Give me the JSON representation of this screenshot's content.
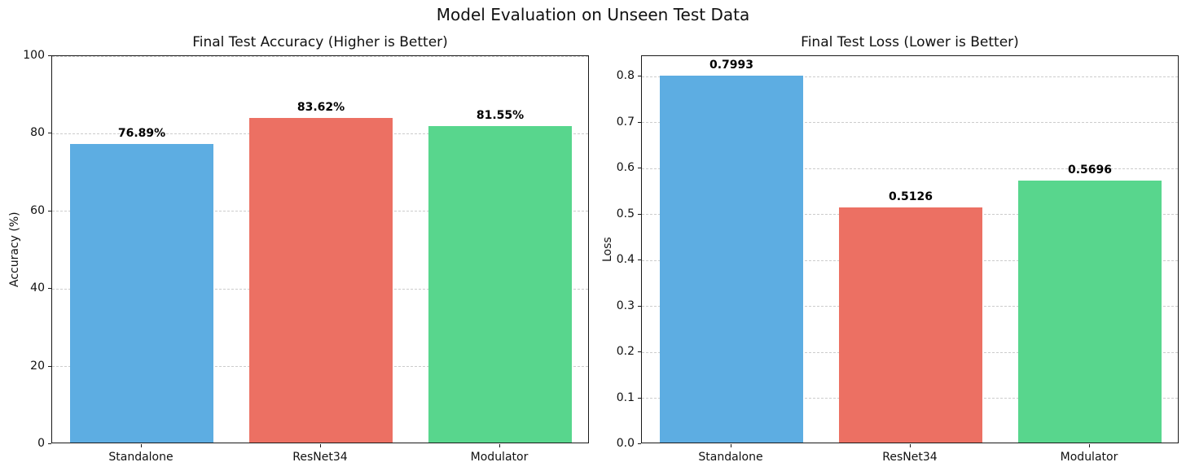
{
  "figure": {
    "title": "Model Evaluation on Unseen Test Data",
    "background": "#ffffff"
  },
  "colors": {
    "bar_blue": "#5DADE2",
    "bar_red": "#EC7063",
    "bar_green": "#58D68D",
    "grid": "#cccccc",
    "spine": "#1a1a1a"
  },
  "chart_data": [
    {
      "type": "bar",
      "title": "Final Test Accuracy (Higher is Better)",
      "categories": [
        "Standalone",
        "ResNet34",
        "Modulator"
      ],
      "values": [
        76.89,
        83.62,
        81.55
      ],
      "value_labels": [
        "76.89%",
        "83.62%",
        "81.55%"
      ],
      "bar_colors": [
        "#5DADE2",
        "#EC7063",
        "#58D68D"
      ],
      "xlabel": "",
      "ylabel": "Accuracy (%)",
      "ylim": [
        0,
        100
      ],
      "yticks": [
        0,
        20,
        40,
        60,
        80,
        100
      ],
      "ytick_labels": [
        "0",
        "20",
        "40",
        "60",
        "80",
        "100"
      ],
      "grid": "dashed-horizontal",
      "legend": "none",
      "bar_rel_width": 0.8
    },
    {
      "type": "bar",
      "title": "Final Test Loss (Lower is Better)",
      "categories": [
        "Standalone",
        "ResNet34",
        "Modulator"
      ],
      "values": [
        0.7993,
        0.5126,
        0.5696
      ],
      "value_labels": [
        "0.7993",
        "0.5126",
        "0.5696"
      ],
      "bar_colors": [
        "#5DADE2",
        "#EC7063",
        "#58D68D"
      ],
      "xlabel": "",
      "ylabel": "Loss",
      "ylim": [
        0,
        0.845
      ],
      "yticks": [
        0,
        0.1,
        0.2,
        0.3,
        0.4,
        0.5,
        0.6,
        0.7,
        0.8
      ],
      "ytick_labels": [
        "0.0",
        "0.1",
        "0.2",
        "0.3",
        "0.4",
        "0.5",
        "0.6",
        "0.7",
        "0.8"
      ],
      "grid": "dashed-horizontal",
      "legend": "none",
      "bar_rel_width": 0.8
    }
  ]
}
